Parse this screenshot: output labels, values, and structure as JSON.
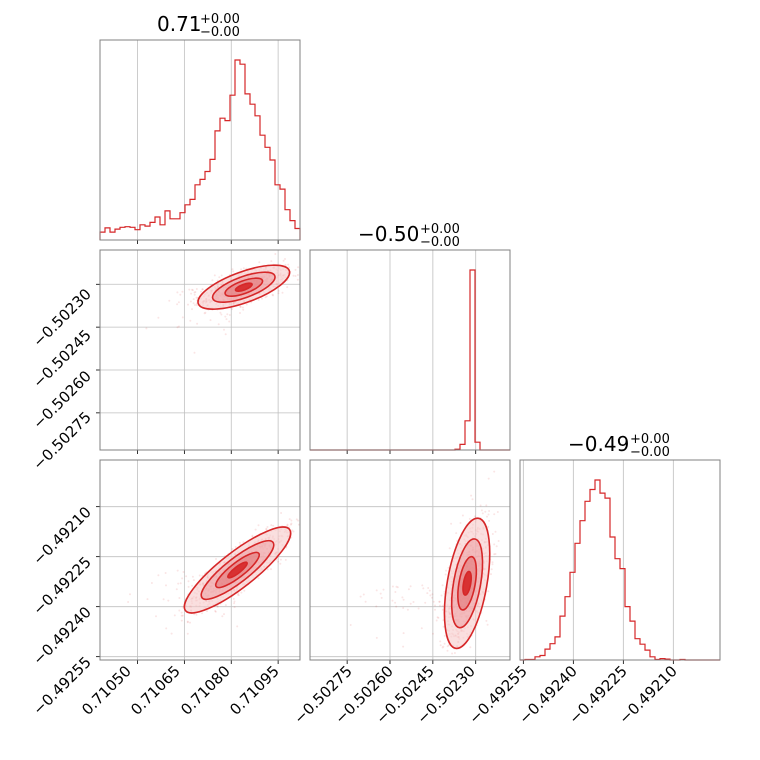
{
  "colors": {
    "accent": "#d62728",
    "fill_light": "#f6c9ca",
    "fill_mid": "#eea4a6",
    "fill_dark": "#e27678",
    "grid": "#bfbfbf",
    "frame": "#808080"
  },
  "chart_data": {
    "type": "corner",
    "grid": true,
    "params": [
      {
        "title_value": "0.71",
        "title_plus": "+0.00",
        "title_minus": "−0.00",
        "range": [
          0.71038,
          0.71102
        ],
        "ticks": [
          0.7105,
          0.71065,
          0.7108,
          0.71095
        ],
        "tick_labels": [
          "0.71050",
          "0.71065",
          "0.71080",
          "0.71095"
        ],
        "hist_center": 0.71084,
        "hist_sigma": 8e-05
      },
      {
        "title_value": "−0.50",
        "title_plus": "+0.00",
        "title_minus": "−0.00",
        "range": [
          -0.50288,
          -0.50218
        ],
        "ticks": [
          -0.50275,
          -0.5026,
          -0.50245,
          -0.5023
        ],
        "tick_labels": [
          "−0.50275",
          "−0.50260",
          "−0.50245",
          "−0.50230"
        ],
        "hist_center": -0.50231,
        "hist_sigma": 4.5e-06
      },
      {
        "title_value": "−0.49",
        "title_plus": "+0.00",
        "title_minus": "−0.00",
        "range": [
          -0.49256,
          -0.49196
        ],
        "ticks": [
          -0.49255,
          -0.4924,
          -0.49225,
          -0.4921
        ],
        "tick_labels": [
          "−0.49255",
          "−0.49240",
          "−0.49225",
          "−0.49210"
        ],
        "hist_center": -0.49233,
        "hist_sigma": 6e-05
      }
    ]
  }
}
